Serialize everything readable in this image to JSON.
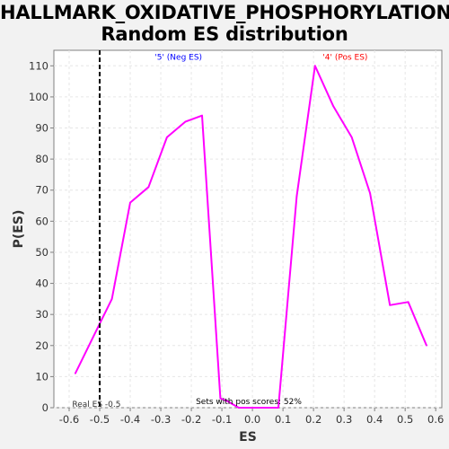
{
  "chart_data": {
    "type": "line",
    "title_line1": "HALLMARK_OXIDATIVE_PHOSPHORYLATION:",
    "title_line2": "Random ES distribution",
    "xlabel": "ES",
    "ylabel": "P(ES)",
    "xlim": [
      -0.65,
      0.62
    ],
    "ylim": [
      0,
      115
    ],
    "xticks": [
      -0.6,
      -0.5,
      -0.4,
      -0.3,
      -0.2,
      -0.1,
      0.0,
      0.1,
      0.2,
      0.3,
      0.4,
      0.5,
      0.6
    ],
    "xtick_labels": [
      "-0.6",
      "-0.5",
      "-0.4",
      "-0.3",
      "-0.2",
      "-0.1",
      "0.0",
      "0.1",
      "0.2",
      "0.3",
      "0.4",
      "0.5",
      "0.6"
    ],
    "yticks": [
      0,
      10,
      20,
      30,
      40,
      50,
      60,
      70,
      80,
      90,
      100,
      110
    ],
    "ytick_labels": [
      "0",
      "10",
      "20",
      "30",
      "40",
      "50",
      "60",
      "70",
      "80",
      "90",
      "100",
      "110"
    ],
    "grid": true,
    "series": [
      {
        "color": "#ff00ff",
        "x": [
          -0.58,
          -0.495,
          -0.46,
          -0.4,
          -0.34,
          -0.28,
          -0.22,
          -0.165,
          -0.105,
          -0.08,
          -0.045,
          0.0,
          0.055,
          0.085,
          0.145,
          0.205,
          0.265,
          0.325,
          0.385,
          0.45,
          0.51,
          0.57
        ],
        "y": [
          11,
          28,
          35,
          66,
          71,
          87,
          92,
          94,
          3,
          2,
          0,
          0,
          0,
          0,
          68,
          110,
          97,
          87,
          69,
          33,
          34,
          20
        ]
      }
    ],
    "real_es": -0.5,
    "real_es_label": "Real ES -0.5",
    "real_es_color": "#000000",
    "annotations": [
      {
        "text": "'5' (Neg ES)",
        "color": "#0000ff",
        "x": -0.32,
        "y": 112
      },
      {
        "text": "'4' (Pos ES)",
        "color": "#ff0000",
        "x": 0.23,
        "y": 112
      }
    ],
    "footer_text": "Sets with pos scores: 52%"
  }
}
